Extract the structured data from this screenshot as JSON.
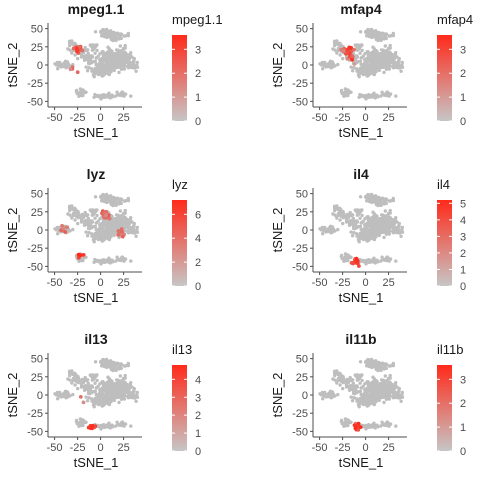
{
  "colors": {
    "point_low": "#bebebe",
    "point_high": "#ff2a1a",
    "legend_low": "#c6c6c6",
    "legend_high": "#ff2a1a",
    "axis": "#4d4d4d",
    "text": "#1a1a1a"
  },
  "chart_data": [
    {
      "type": "scatter",
      "title": "mpeg1.1",
      "xlabel": "tSNE_1",
      "ylabel": "tSNE_2",
      "xlim": [
        -55,
        45
      ],
      "ylim": [
        -55,
        55
      ],
      "xticks": [
        -50,
        -25,
        0,
        25
      ],
      "yticks": [
        50,
        25,
        0,
        -25,
        -50
      ],
      "legend": {
        "title": "mpeg1.1",
        "ticks": [
          0,
          1,
          2,
          3
        ],
        "max": 3.6
      },
      "hotspots": [
        {
          "x": -25,
          "y": 22,
          "n": 14,
          "value": 2.6
        },
        {
          "x": -30,
          "y": -5,
          "n": 4,
          "value": 2.0
        }
      ]
    },
    {
      "type": "scatter",
      "title": "mfap4",
      "xlabel": "tSNE_1",
      "ylabel": "tSNE_2",
      "xlim": [
        -55,
        45
      ],
      "ylim": [
        -55,
        55
      ],
      "xticks": [
        -50,
        -25,
        0,
        25
      ],
      "yticks": [
        50,
        25,
        0,
        -25,
        -50
      ],
      "legend": {
        "title": "mfap4",
        "ticks": [
          0,
          1,
          2,
          3
        ],
        "max": 3.6
      },
      "hotspots": [
        {
          "x": -20,
          "y": 20,
          "n": 22,
          "value": 2.8
        },
        {
          "x": -15,
          "y": 8,
          "n": 10,
          "value": 2.2
        }
      ]
    },
    {
      "type": "scatter",
      "title": "lyz",
      "xlabel": "tSNE_1",
      "ylabel": "tSNE_2",
      "xlim": [
        -55,
        45
      ],
      "ylim": [
        -55,
        55
      ],
      "xticks": [
        -50,
        -25,
        0,
        25
      ],
      "yticks": [
        50,
        25,
        0,
        -25,
        -50
      ],
      "legend": {
        "title": "lyz",
        "ticks": [
          0,
          2,
          4,
          6
        ],
        "max": 7.2
      },
      "hotspots": [
        {
          "x": -22,
          "y": -35,
          "n": 6,
          "value": 6.5
        },
        {
          "x": 5,
          "y": 20,
          "n": 18,
          "value": 4.0
        },
        {
          "x": 22,
          "y": -5,
          "n": 14,
          "value": 3.5
        },
        {
          "x": -40,
          "y": 0,
          "n": 6,
          "value": 3.0
        }
      ]
    },
    {
      "type": "scatter",
      "title": "il4",
      "xlabel": "tSNE_1",
      "ylabel": "tSNE_2",
      "xlim": [
        -55,
        45
      ],
      "ylim": [
        -55,
        55
      ],
      "xticks": [
        -50,
        -25,
        0,
        25
      ],
      "yticks": [
        50,
        25,
        0,
        -25,
        -50
      ],
      "legend": {
        "title": "il4",
        "ticks": [
          0,
          1,
          2,
          3,
          4,
          5
        ],
        "max": 5.2
      },
      "hotspots": [
        {
          "x": -10,
          "y": -43,
          "n": 14,
          "value": 4.6
        }
      ]
    },
    {
      "type": "scatter",
      "title": "il13",
      "xlabel": "tSNE_1",
      "ylabel": "tSNE_2",
      "xlim": [
        -55,
        45
      ],
      "ylim": [
        -55,
        55
      ],
      "xticks": [
        -50,
        -25,
        0,
        25
      ],
      "yticks": [
        50,
        25,
        0,
        -25,
        -50
      ],
      "legend": {
        "title": "il13",
        "ticks": [
          0,
          1,
          2,
          3,
          4
        ],
        "max": 4.8
      },
      "hotspots": [
        {
          "x": -10,
          "y": -43,
          "n": 14,
          "value": 4.2
        },
        {
          "x": -20,
          "y": -5,
          "n": 2,
          "value": 2.0
        }
      ]
    },
    {
      "type": "scatter",
      "title": "il11b",
      "xlabel": "tSNE_1",
      "ylabel": "tSNE_2",
      "xlim": [
        -55,
        45
      ],
      "ylim": [
        -55,
        55
      ],
      "xticks": [
        -50,
        -25,
        0,
        25
      ],
      "yticks": [
        50,
        25,
        0,
        -25,
        -50
      ],
      "legend": {
        "title": "il11b",
        "ticks": [
          0,
          1,
          2,
          3
        ],
        "max": 3.6
      },
      "hotspots": [
        {
          "x": -10,
          "y": -43,
          "n": 14,
          "value": 3.2
        }
      ]
    }
  ]
}
